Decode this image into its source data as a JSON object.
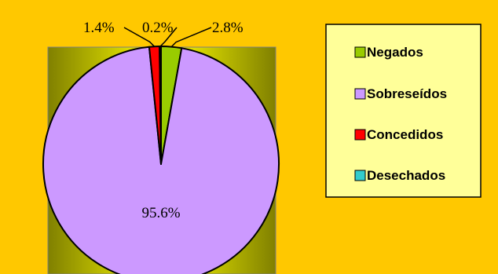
{
  "chart_data": {
    "type": "pie",
    "slices": [
      {
        "label": "Negados",
        "value": 2.8,
        "display": "2.8%",
        "color": "#99CC00"
      },
      {
        "label": "Sobreseídos",
        "value": 95.6,
        "display": "95.6%",
        "color": "#CC99FF"
      },
      {
        "label": "Concedidos",
        "value": 1.4,
        "display": "1.4%",
        "color": "#FF0000"
      },
      {
        "label": "Desechados",
        "value": 0.2,
        "display": "0.2%",
        "color": "#33CCCC"
      }
    ],
    "legend_position": "right",
    "background_color": "#FFC800",
    "plot_area_gradient": [
      "#FFFF00",
      "#808000"
    ],
    "legend_background": "#FFFF99"
  }
}
